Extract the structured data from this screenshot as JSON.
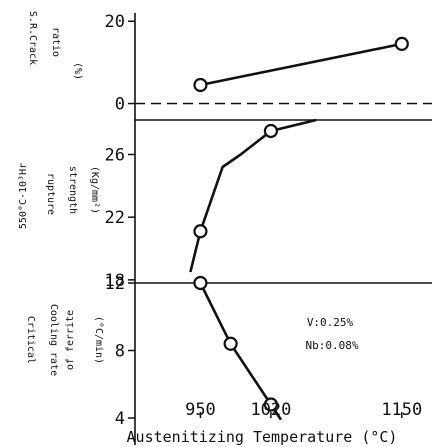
{
  "chart_data": [
    {
      "type": "line",
      "ylabel": [
        "S.R.Crack",
        "ratio",
        "(%)"
      ],
      "ylim": [
        -4,
        22
      ],
      "yticks": [
        0,
        20
      ],
      "reference_line": {
        "y": 0,
        "style": "dashed"
      },
      "series": [
        {
          "x": [
            950,
            1150
          ],
          "y": [
            4.5,
            14.5
          ],
          "markers": [
            true,
            true
          ]
        }
      ]
    },
    {
      "type": "line",
      "ylabel": [
        "550°C·10³Hr",
        "rupture",
        "strength",
        "(Kg/mm²)"
      ],
      "ylim": [
        17.8,
        28.2
      ],
      "yticks": [
        18,
        22,
        26
      ],
      "series": [
        {
          "x": [
            940,
            950,
            972,
            990,
            1020,
            1065
          ],
          "y": [
            18.5,
            21.1,
            25.2,
            26.0,
            27.5,
            28.2
          ],
          "markers": [
            false,
            true,
            false,
            false,
            true,
            false
          ]
        }
      ]
    },
    {
      "type": "line",
      "ylabel": [
        "Critical",
        "Cooling rate",
        "of ferrite",
        "(°C/min)"
      ],
      "ylim": [
        4,
        12
      ],
      "yticks": [
        4,
        8,
        12
      ],
      "series": [
        {
          "x": [
            950,
            980,
            1020,
            1030
          ],
          "y": [
            12.0,
            8.4,
            4.8,
            3.9
          ],
          "markers": [
            true,
            true,
            true,
            false
          ]
        }
      ],
      "annotations": [
        "V:0.25%",
        "Nb:0.08%"
      ]
    }
  ],
  "x_axis": {
    "label": "Austenitizing Temperature (°C)",
    "ticks": [
      950,
      1020,
      1150
    ],
    "xlim": [
      885,
      1180
    ]
  }
}
